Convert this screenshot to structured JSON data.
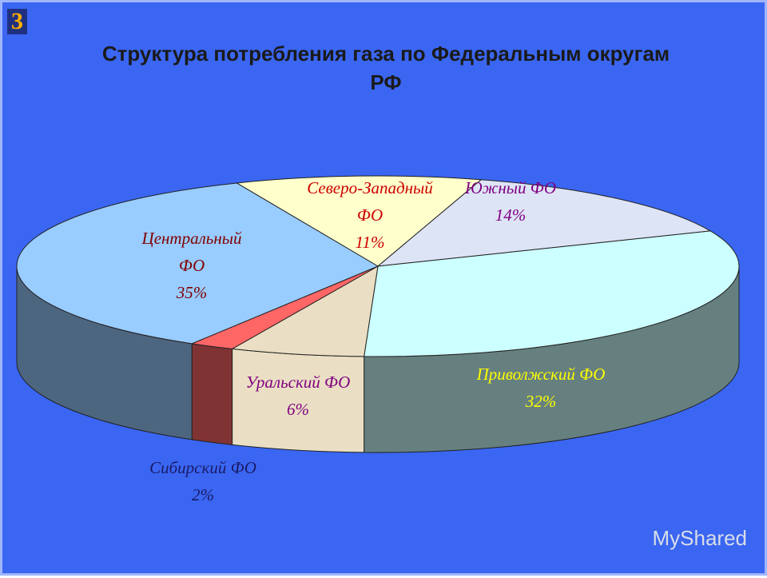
{
  "slide_number": "3",
  "watermark": "MyShared",
  "chart_data": {
    "type": "pie3d",
    "title": "Структура потребления газа по Федеральным округам РФ",
    "categories": [
      "Северо-Западный ФО",
      "Южный ФО",
      "Приволжский ФО",
      "Уральский ФО",
      "Сибирский ФО",
      "Центральный ФО"
    ],
    "values": [
      11,
      14,
      32,
      6,
      2,
      35
    ],
    "value_labels": [
      "11%",
      "14%",
      "32%",
      "6%",
      "2%",
      "35%"
    ],
    "colors": [
      "#ffffcc",
      "#dde4f6",
      "#ccffff",
      "#eadfc4",
      "#ff6666",
      "#99ccff"
    ]
  }
}
